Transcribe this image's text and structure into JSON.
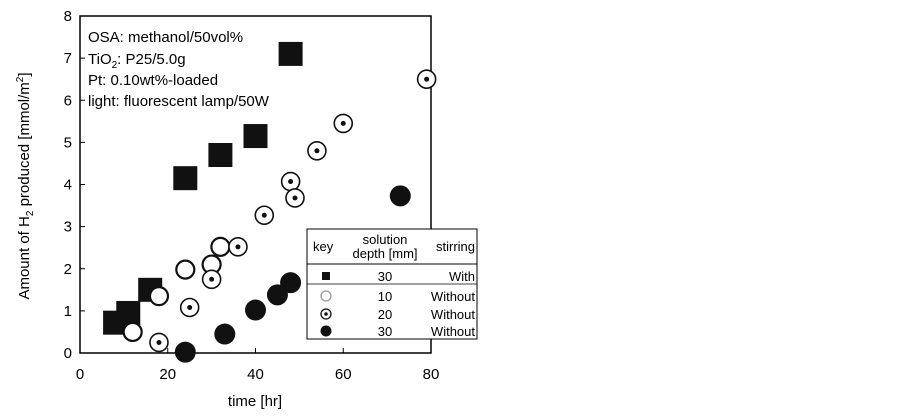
{
  "chart_data": {
    "type": "scatter",
    "title": "",
    "xlabel": "time [hr]",
    "ylabel_main": "Amount of H",
    "ylabel_sub": "2",
    "ylabel_mid": " produced [mmol/m",
    "ylabel_sup": "2",
    "ylabel_end": "]",
    "xlim": [
      0,
      80
    ],
    "ylim": [
      0,
      8
    ],
    "x_ticks": [
      "0",
      "20",
      "40",
      "60",
      "80"
    ],
    "y_ticks": [
      "0",
      "1",
      "2",
      "3",
      "4",
      "5",
      "6",
      "7",
      "8"
    ],
    "grid": false,
    "annotations": {
      "line1": "OSA: methanol/50vol%",
      "line2_a": "TiO",
      "line2_sub": "2",
      "line2_b": ": P25/5.0g",
      "line3": "Pt: 0.10wt%-loaded",
      "line4": "light: fluorescent lamp/50W"
    },
    "legend": {
      "placement": "bottom-right",
      "header_key": "key",
      "header_depth_1": "solution",
      "header_depth_2": "depth [mm]",
      "header_stirring": "stirring",
      "rows": [
        {
          "marker": "square",
          "depth": "30",
          "stirring": "With"
        },
        {
          "marker": "open-circle",
          "depth": "10",
          "stirring": "Without"
        },
        {
          "marker": "dot-circle",
          "depth": "20",
          "stirring": "Without"
        },
        {
          "marker": "filled-circle",
          "depth": "30",
          "stirring": "Without"
        }
      ]
    },
    "series": [
      {
        "marker": "square",
        "points": [
          [
            8,
            0.72
          ],
          [
            11,
            0.95
          ],
          [
            16,
            1.5
          ],
          [
            24,
            4.15
          ],
          [
            32,
            4.7
          ],
          [
            40,
            5.15
          ],
          [
            48,
            7.1
          ]
        ]
      },
      {
        "marker": "open-circle",
        "points": [
          [
            12,
            0.5
          ],
          [
            18,
            1.35
          ],
          [
            24,
            1.98
          ],
          [
            30,
            2.1
          ],
          [
            32,
            2.52
          ]
        ]
      },
      {
        "marker": "dot-circle",
        "points": [
          [
            18,
            0.25
          ],
          [
            25,
            1.08
          ],
          [
            30,
            1.75
          ],
          [
            36,
            2.52
          ],
          [
            42,
            3.27
          ],
          [
            48,
            4.07
          ],
          [
            49,
            3.68
          ],
          [
            54,
            4.8
          ],
          [
            60,
            5.45
          ],
          [
            79,
            6.5
          ]
        ]
      },
      {
        "marker": "filled-circle",
        "points": [
          [
            24,
            0.02
          ],
          [
            33,
            0.45
          ],
          [
            40,
            1.02
          ],
          [
            45,
            1.38
          ],
          [
            48,
            1.67
          ],
          [
            73,
            3.73
          ]
        ]
      }
    ]
  }
}
